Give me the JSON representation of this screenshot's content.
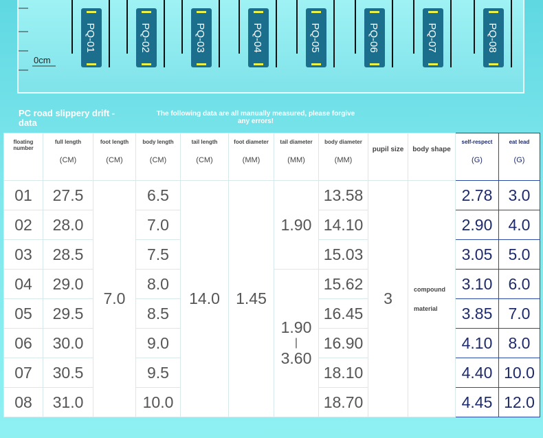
{
  "header": {
    "floats": [
      "PQ-01",
      "PQ-02",
      "PQ-03",
      "PQ-04",
      "PQ-05",
      "PQ-06",
      "PQ-07",
      "PQ-08"
    ],
    "scale_label": "0cm",
    "title": "PC road slippery drift - data",
    "note": "The following data are all manually measured, please forgive any errors!"
  },
  "table": {
    "columns": [
      {
        "name": "floating number"
      },
      {
        "name": "full length",
        "unit": "(CM)"
      },
      {
        "name": "foot length",
        "unit": "(CM)"
      },
      {
        "name": "body length",
        "unit": "(CM)"
      },
      {
        "name": "tail length",
        "unit": "(CM)"
      },
      {
        "name": "foot diameter",
        "unit": "(MM)"
      },
      {
        "name": "tail diameter",
        "unit": "(MM)"
      },
      {
        "name": "body diameter",
        "unit": "(MM)"
      },
      {
        "name": "pupil size"
      },
      {
        "name": "body shape"
      },
      {
        "name": "self-respect",
        "unit": "(G)"
      },
      {
        "name": "eat lead",
        "unit": "(G)"
      }
    ],
    "rows": [
      [
        "01",
        "27.5",
        "6.5",
        "13.58",
        "2.78",
        "3.0"
      ],
      [
        "02",
        "28.0",
        "7.0",
        "14.10",
        "2.90",
        "4.0"
      ],
      [
        "03",
        "28.5",
        "7.5",
        "15.03",
        "3.05",
        "5.0"
      ],
      [
        "04",
        "29.0",
        "8.0",
        "15.62",
        "3.10",
        "6.0"
      ],
      [
        "05",
        "29.5",
        "8.5",
        "16.45",
        "3.85",
        "7.0"
      ],
      [
        "06",
        "30.0",
        "9.0",
        "16.90",
        "4.10",
        "8.0"
      ],
      [
        "07",
        "30.5",
        "9.5",
        "18.10",
        "4.40",
        "10.0"
      ],
      [
        "08",
        "31.0",
        "10.0",
        "18.70",
        "4.45",
        "12.0"
      ]
    ],
    "merged": {
      "foot_length": "7.0",
      "tail_length": "14.0",
      "foot_diameter": "1.45",
      "tail_diameter_top": "1.90",
      "tail_diameter_bottom": [
        "1.90",
        "|",
        "3.60"
      ],
      "pupil_size": "3",
      "body_shape": [
        "compound",
        "material"
      ]
    }
  }
}
